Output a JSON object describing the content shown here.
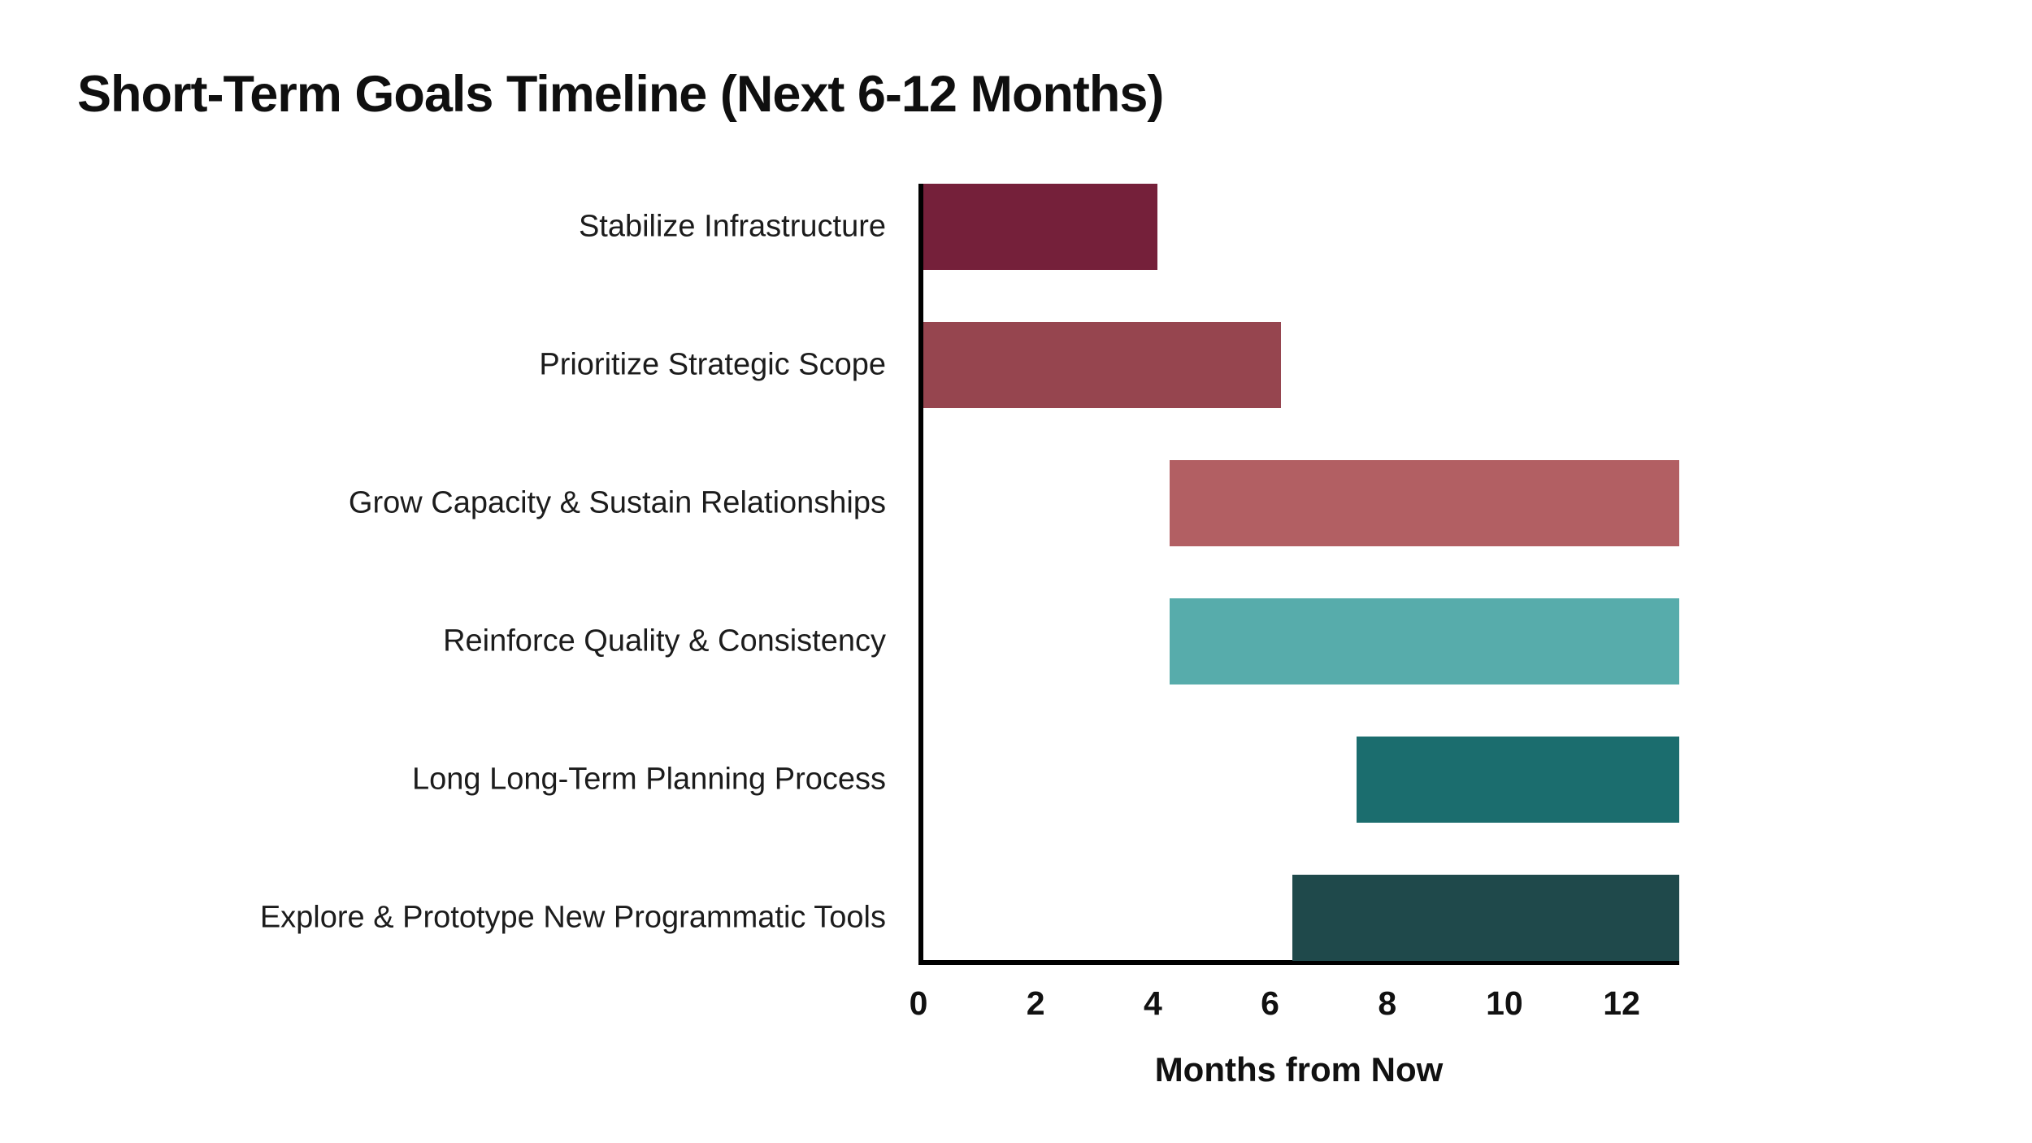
{
  "chart_data": {
    "type": "bar",
    "orientation": "horizontal",
    "title": "Short-Term Goals Timeline (Next 6-12 Months)",
    "xlabel": "Months from Now",
    "xlim": [
      0,
      12.9
    ],
    "xticks": [
      0,
      2,
      4,
      6,
      8,
      10,
      12
    ],
    "grid": false,
    "legend": "none",
    "categories": [
      "Stabilize Infrastructure",
      "Prioritize Strategic Scope",
      "Grow Capacity & Sustain Relationships",
      "Reinforce Quality & Consistency",
      "Long Long-Term Planning Process",
      "Explore & Prototype New Programmatic Tools"
    ],
    "bars": [
      {
        "label": "Stabilize Infrastructure",
        "start": 0,
        "end": 4,
        "color": "#75203A"
      },
      {
        "label": "Prioritize Strategic Scope",
        "start": 0,
        "end": 6.1,
        "color": "#96454F"
      },
      {
        "label": "Grow Capacity & Sustain Relationships",
        "start": 4.2,
        "end": 12.9,
        "color": "#B25F63"
      },
      {
        "label": "Reinforce Quality & Consistency",
        "start": 4.2,
        "end": 12.9,
        "color": "#57ACAB"
      },
      {
        "label": "Long Long-Term Planning Process",
        "start": 7.4,
        "end": 12.9,
        "color": "#1B6D6E"
      },
      {
        "label": "Explore & Prototype New Programmatic Tools",
        "start": 6.3,
        "end": 12.9,
        "color": "#1F494B"
      }
    ],
    "axis_color": "#000000",
    "background_color": "#ffffff"
  }
}
